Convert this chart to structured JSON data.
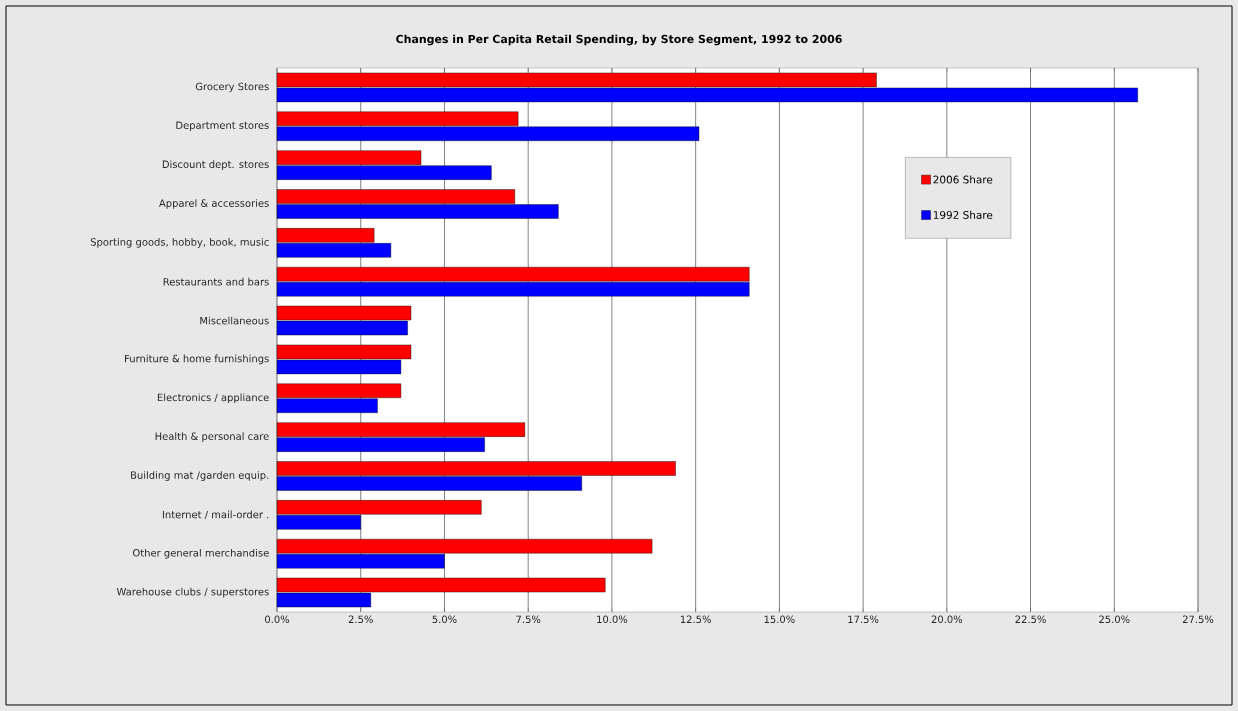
{
  "chart_data": {
    "type": "bar",
    "orientation": "horizontal",
    "title": "Changes in Per Capita Retail Spending, by Store Segment, 1992 to 2006",
    "categories": [
      "Grocery Stores",
      "Department stores",
      "Discount dept. stores",
      "Apparel & accessories",
      "Sporting goods, hobby, book, music",
      "Restaurants and bars",
      "Miscellaneous",
      "Furniture & home furnishings",
      "Electronics / appliance",
      "Health & personal care",
      "Building mat /garden equip.",
      "Internet / mail-order .",
      "Other general merchandise",
      "Warehouse clubs / superstores"
    ],
    "series": [
      {
        "name": "2006 Share",
        "color": "#ff0000",
        "values": [
          17.9,
          7.2,
          4.3,
          7.1,
          2.9,
          14.1,
          4.0,
          4.0,
          3.7,
          7.4,
          11.9,
          6.1,
          11.2,
          9.8
        ]
      },
      {
        "name": "1992 Share",
        "color": "#0000ff",
        "values": [
          25.7,
          12.6,
          6.4,
          8.4,
          3.4,
          14.1,
          3.9,
          3.7,
          3.0,
          6.2,
          9.1,
          2.5,
          5.0,
          2.8
        ]
      }
    ],
    "xlim": [
      0,
      27.5
    ],
    "xticks": [
      {
        "value": 0,
        "label": "0.0%"
      },
      {
        "value": 2.5,
        "label": "2.5%"
      },
      {
        "value": 5,
        "label": "5.0%"
      },
      {
        "value": 7.5,
        "label": "7.5%"
      },
      {
        "value": 10,
        "label": "10.0%"
      },
      {
        "value": 12.5,
        "label": "12.5%"
      },
      {
        "value": 15,
        "label": "15.0%"
      },
      {
        "value": 17.5,
        "label": "17.5%"
      },
      {
        "value": 20,
        "label": "20.0%"
      },
      {
        "value": 22.5,
        "label": "22.5%"
      },
      {
        "value": 25,
        "label": "25.0%"
      },
      {
        "value": 27.5,
        "label": "27.5%"
      }
    ],
    "grid": "x",
    "legend": "top right"
  }
}
